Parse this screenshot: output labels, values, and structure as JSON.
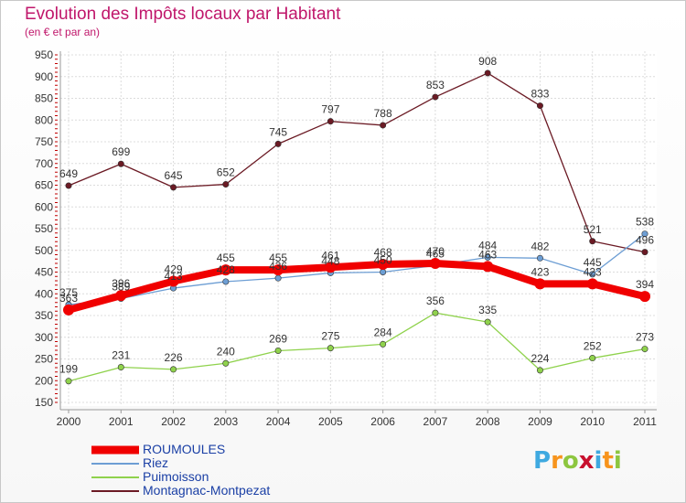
{
  "title": "Evolution des Impôts locaux par Habitant",
  "subtitle": "(en € et par an)",
  "logo": {
    "letters": [
      "P",
      "r",
      "o",
      "x",
      "i",
      "t",
      "i"
    ],
    "colors": [
      "#3fa9e0",
      "#f7941d",
      "#8dc63f",
      "#c8102e",
      "#3fa9e0",
      "#f7941d",
      "#8dc63f"
    ]
  },
  "chart_data": {
    "type": "line",
    "title": "Evolution des Impôts locaux par Habitant",
    "subtitle": "(en € et par an)",
    "x": [
      "2000",
      "2001",
      "2002",
      "2003",
      "2004",
      "2005",
      "2006",
      "2007",
      "2008",
      "2009",
      "2010",
      "2011"
    ],
    "ylim": [
      150,
      950
    ],
    "yticks": [
      "150",
      "200",
      "250",
      "300",
      "350",
      "400",
      "450",
      "500",
      "550",
      "600",
      "650",
      "700",
      "750",
      "800",
      "850",
      "900",
      "950"
    ],
    "grid": true,
    "legend_position": "bottom-left",
    "series": [
      {
        "name": "Montagnac-Montpezat",
        "color": "#6b1a24",
        "width": 1.3,
        "values": [
          649,
          699,
          645,
          652,
          745,
          797,
          788,
          853,
          908,
          833,
          521,
          496
        ],
        "labels": [
          "649",
          "699",
          "645",
          "652",
          "745",
          "797",
          "788",
          "853",
          "908",
          "833",
          "521",
          "496"
        ]
      },
      {
        "name": "Puimoisson",
        "color": "#8fd24c",
        "width": 1.3,
        "values": [
          199,
          231,
          226,
          240,
          269,
          275,
          284,
          356,
          335,
          224,
          252,
          273
        ],
        "labels": [
          "199",
          "231",
          "226",
          "240",
          "269",
          "275",
          "284",
          "356",
          "335",
          "224",
          "252",
          "273"
        ]
      },
      {
        "name": "Riez",
        "color": "#6d9ed4",
        "width": 1.3,
        "values": [
          375,
          389,
          413,
          428,
          436,
          448,
          450,
          465,
          484,
          482,
          445,
          538
        ],
        "labels": [
          "375",
          "389",
          "413",
          "428",
          "436",
          "448",
          "450",
          "465",
          "484",
          "482",
          "445",
          "538"
        ]
      },
      {
        "name": "ROUMOULES",
        "color": "#f00000",
        "width": 8,
        "values": [
          363,
          396,
          429,
          455,
          455,
          461,
          468,
          470,
          463,
          423,
          423,
          394
        ],
        "labels": [
          "363",
          "396",
          "429",
          "455",
          "455",
          "461",
          "468",
          "470",
          "463",
          "423",
          "423",
          "394"
        ]
      }
    ]
  },
  "legend": [
    {
      "label": "ROUMOULES",
      "color": "#f00000",
      "thickness": "heavy"
    },
    {
      "label": "Riez",
      "color": "#6d9ed4",
      "thickness": "thin"
    },
    {
      "label": "Puimoisson",
      "color": "#8fd24c",
      "thickness": "thin"
    },
    {
      "label": "Montagnac-Montpezat",
      "color": "#6b1a24",
      "thickness": "thin"
    }
  ]
}
